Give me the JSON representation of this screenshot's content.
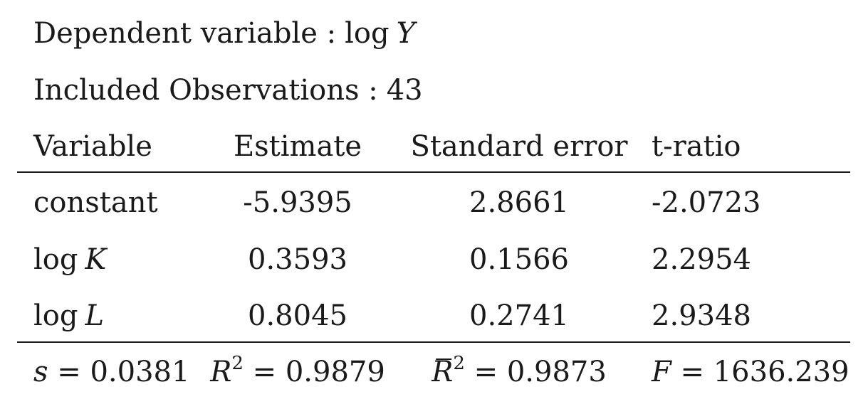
{
  "header": {
    "dependent_label": "Dependent variable :",
    "dependent_value": "log Y",
    "observations_label": "Included Observations :",
    "observations_value": "43"
  },
  "table": {
    "columns": [
      "Variable",
      "Estimate",
      "Standard error",
      "t-ratio"
    ],
    "rows": [
      {
        "variable": "constant",
        "estimate": "-5.9395",
        "std_error": "2.8661",
        "t_ratio": "-2.0723"
      },
      {
        "variable": "log K",
        "estimate": "0.3593",
        "std_error": "0.1566",
        "t_ratio": "2.2954"
      },
      {
        "variable": "log L",
        "estimate": "0.8045",
        "std_error": "0.2741",
        "t_ratio": "2.9348"
      }
    ]
  },
  "stats": {
    "s": {
      "symbol": "s",
      "value": "0.0381"
    },
    "r2": {
      "symbol": "R",
      "value": "0.9879"
    },
    "r2_adj": {
      "symbol": "R",
      "value": "0.9873"
    },
    "f": {
      "symbol": "F",
      "value": "1636.239"
    }
  }
}
